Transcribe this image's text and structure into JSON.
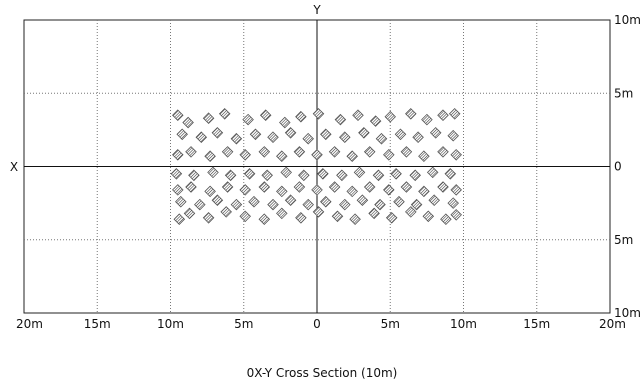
{
  "chart_data": {
    "type": "scatter",
    "title": "0X-Y Cross Section (10m)",
    "x_axis_name": "X",
    "y_axis_name": "Y",
    "xlim": [
      -20,
      20
    ],
    "ylim": [
      -10,
      10
    ],
    "grid": true,
    "x_ticks": [
      {
        "value": -20,
        "label": "20m"
      },
      {
        "value": -15,
        "label": "15m"
      },
      {
        "value": -10,
        "label": "10m"
      },
      {
        "value": -5,
        "label": "5m"
      },
      {
        "value": 0,
        "label": "0"
      },
      {
        "value": 5,
        "label": "5m"
      },
      {
        "value": 10,
        "label": "10m"
      },
      {
        "value": 15,
        "label": "15m"
      },
      {
        "value": 20,
        "label": "20m"
      }
    ],
    "y_ticks": [
      {
        "value": 10,
        "label": "10m"
      },
      {
        "value": 5,
        "label": "5m"
      },
      {
        "value": 0,
        "label": "0"
      },
      {
        "value": -5,
        "label": "5m"
      },
      {
        "value": -10,
        "label": "10m"
      }
    ],
    "marker_color": "#555555",
    "points_x": [
      -9.5,
      -8.8,
      -7.4,
      -6.3,
      -4.7,
      -3.5,
      -2.2,
      -1.1,
      0.1,
      1.6,
      2.8,
      4.0,
      5.0,
      6.4,
      7.5,
      8.6,
      9.4,
      -9.2,
      -7.9,
      -6.8,
      -5.5,
      -4.2,
      -3.0,
      -1.8,
      -0.6,
      0.6,
      1.9,
      3.2,
      4.4,
      5.7,
      6.9,
      8.1,
      9.3,
      -9.5,
      -8.6,
      -7.3,
      -6.1,
      -4.9,
      -3.6,
      -2.4,
      -1.2,
      0.0,
      1.2,
      2.4,
      3.6,
      4.9,
      6.1,
      7.3,
      8.6,
      9.5,
      -9.6,
      -8.4,
      -7.1,
      -5.9,
      -4.6,
      -3.4,
      -2.1,
      -0.9,
      0.4,
      1.7,
      2.9,
      4.2,
      5.4,
      6.7,
      7.9,
      9.1,
      -9.5,
      -8.6,
      -7.3,
      -6.1,
      -4.9,
      -3.6,
      -2.4,
      -1.2,
      0.0,
      1.2,
      2.4,
      3.6,
      4.9,
      6.1,
      7.3,
      8.6,
      9.5,
      -9.3,
      -8.0,
      -6.8,
      -5.5,
      -4.3,
      -3.0,
      -1.8,
      -0.6,
      0.6,
      1.9,
      3.1,
      4.3,
      5.6,
      6.8,
      8.0,
      9.3,
      -9.4,
      -8.7,
      -7.4,
      -6.2,
      -4.9,
      -3.6,
      -2.4,
      -1.1,
      0.1,
      1.4,
      2.6,
      3.9,
      5.1,
      6.4,
      7.6,
      8.8,
      9.5
    ],
    "points_y": [
      3.5,
      3.0,
      3.3,
      3.6,
      3.2,
      3.5,
      3.0,
      3.4,
      3.6,
      3.2,
      3.5,
      3.1,
      3.4,
      3.6,
      3.2,
      3.5,
      3.6,
      2.2,
      2.0,
      2.3,
      1.9,
      2.2,
      2.0,
      2.3,
      1.9,
      2.2,
      2.0,
      2.3,
      1.9,
      2.2,
      2.0,
      2.3,
      2.1,
      0.8,
      1.0,
      0.7,
      1.0,
      0.8,
      1.0,
      0.7,
      1.0,
      0.8,
      1.0,
      0.7,
      1.0,
      0.8,
      1.0,
      0.7,
      1.0,
      0.8,
      -0.5,
      -0.6,
      -0.4,
      -0.6,
      -0.5,
      -0.6,
      -0.4,
      -0.6,
      -0.5,
      -0.6,
      -0.4,
      -0.6,
      -0.5,
      -0.6,
      -0.4,
      -0.5,
      -1.6,
      -1.4,
      -1.7,
      -1.4,
      -1.6,
      -1.4,
      -1.7,
      -1.4,
      -1.6,
      -1.4,
      -1.7,
      -1.4,
      -1.6,
      -1.4,
      -1.7,
      -1.4,
      -1.6,
      -2.4,
      -2.6,
      -2.3,
      -2.6,
      -2.4,
      -2.6,
      -2.3,
      -2.6,
      -2.4,
      -2.6,
      -2.3,
      -2.6,
      -2.4,
      -2.6,
      -2.3,
      -2.5,
      -3.6,
      -3.2,
      -3.5,
      -3.1,
      -3.4,
      -3.6,
      -3.2,
      -3.5,
      -3.1,
      -3.4,
      -3.6,
      -3.2,
      -3.5,
      -3.1,
      -3.4,
      -3.6,
      -3.3
    ]
  }
}
